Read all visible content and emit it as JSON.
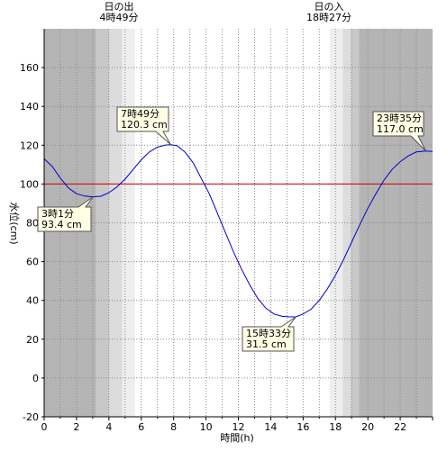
{
  "chart_data": {
    "type": "line",
    "xlabel": "時間(h)",
    "ylabel": "水位(cm)",
    "xlim": [
      0,
      24
    ],
    "ylim": [
      -20,
      180
    ],
    "x_ticks": [
      0,
      2,
      4,
      6,
      8,
      10,
      12,
      14,
      16,
      18,
      20,
      22
    ],
    "y_ticks": [
      -20,
      0,
      20,
      40,
      60,
      80,
      100,
      120,
      140,
      160
    ],
    "reference_line": {
      "y": 100,
      "color": "#d00000"
    },
    "series": [
      {
        "color": "#0000cc",
        "x": [
          0,
          0.5,
          1,
          1.5,
          2,
          2.5,
          3.02,
          3.5,
          4,
          4.5,
          5,
          5.5,
          6,
          6.5,
          7,
          7.5,
          7.82,
          8.2,
          8.7,
          9.2,
          9.7,
          10.2,
          10.7,
          11.2,
          11.7,
          12.2,
          12.7,
          13.2,
          13.7,
          14.2,
          14.7,
          15.2,
          15.55,
          16,
          16.5,
          17,
          17.5,
          18,
          18.5,
          19,
          19.5,
          20,
          20.5,
          21,
          21.5,
          22,
          22.5,
          23,
          23.58,
          24
        ],
        "y": [
          113,
          109,
          103,
          98,
          95,
          93.8,
          93.4,
          93.7,
          95.5,
          98.5,
          102.5,
          107.5,
          112.5,
          116.5,
          119,
          120.1,
          120.3,
          119.8,
          116.5,
          111,
          103,
          95,
          85,
          75,
          65,
          56,
          48,
          41,
          36,
          33,
          31.8,
          31.5,
          31.5,
          33,
          35.5,
          40,
          46,
          53,
          61,
          70,
          79,
          87.5,
          95,
          102,
          107.5,
          111.5,
          114.5,
          116.5,
          117,
          116.8
        ]
      }
    ],
    "annotations": [
      {
        "time": "3時1分",
        "value": "93.4 cm"
      },
      {
        "time": "7時49分",
        "value": "120.3 cm"
      },
      {
        "time": "15時33分",
        "value": "31.5 cm"
      },
      {
        "time": "23時35分",
        "value": "117.0 cm"
      }
    ],
    "sunrise": {
      "title": "日の出",
      "time": "4時49分",
      "hour": 4.817
    },
    "sunset": {
      "title": "日の入",
      "time": "18時27分",
      "hour": 18.45
    },
    "twilight_colors": [
      "#b4b4b4",
      "#c8c8c8",
      "#dcdcdc",
      "#eeeeee"
    ],
    "grid": true
  }
}
